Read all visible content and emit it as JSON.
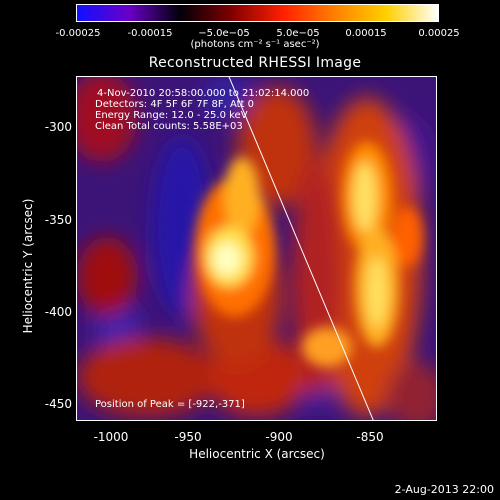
{
  "colorbar": {
    "tick_labels": [
      "-0.00025",
      "-0.00015",
      "−5.0e−05",
      "5.0e−05",
      "0.00015",
      "0.00025"
    ],
    "units": "(photons cm⁻² s⁻¹ asec⁻²)",
    "colors": [
      "#1010ff",
      "#6a00c8",
      "#00000a",
      "#800000",
      "#ff2000",
      "#ff8000",
      "#ffd000",
      "#ffffff"
    ]
  },
  "title": "Reconstructed RHESSI Image",
  "info": {
    "time_range": "4-Nov-2010 20:58:00.000 to 21:02:14.000",
    "detectors": "Detectors: 4F 5F 6F 7F 8F, Att 0",
    "energy_range": "Energy Range: 12.0 - 25.0 keV",
    "clean": "Clean    Total counts: 5.58E+03",
    "peak": "Position of Peak = [-922,-371]"
  },
  "axes": {
    "xlabel": "Heliocentric X (arcsec)",
    "ylabel": "Heliocentric Y (arcsec)",
    "x_ticks": [
      "-1000",
      "-950",
      "-900",
      "-850"
    ],
    "y_ticks": [
      "-300",
      "-350",
      "-400",
      "-450"
    ],
    "x_range": [
      -1010,
      -827
    ],
    "y_range": [
      -465,
      -280
    ]
  },
  "date_stamp": "2-Aug-2013 22:00"
}
